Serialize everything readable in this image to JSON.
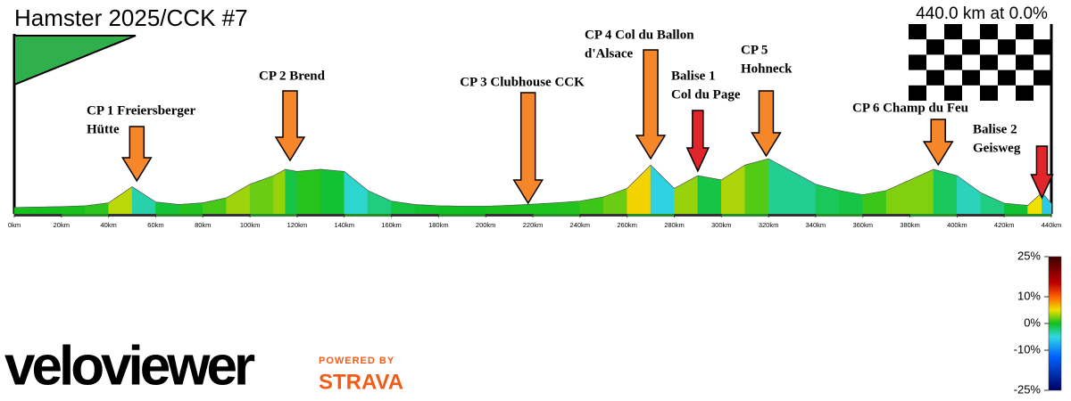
{
  "chart_data": {
    "type": "area",
    "title": "Hamster 2025/CCK #7",
    "summary": "440.0 km at 0.0%",
    "x": [
      0,
      10,
      20,
      30,
      40,
      50,
      60,
      70,
      80,
      90,
      100,
      110,
      115,
      120,
      130,
      140,
      150,
      160,
      170,
      180,
      190,
      200,
      210,
      220,
      230,
      240,
      250,
      260,
      270,
      280,
      290,
      300,
      310,
      320,
      330,
      340,
      350,
      360,
      370,
      380,
      390,
      400,
      410,
      420,
      430,
      436,
      440
    ],
    "values": [
      150,
      160,
      170,
      190,
      260,
      640,
      280,
      220,
      260,
      380,
      700,
      900,
      1050,
      1000,
      1050,
      1000,
      550,
      300,
      220,
      190,
      180,
      180,
      200,
      230,
      260,
      300,
      400,
      600,
      1150,
      600,
      900,
      800,
      1150,
      1300,
      1000,
      700,
      550,
      450,
      550,
      800,
      1050,
      900,
      500,
      250,
      200,
      500,
      250
    ],
    "xlim": [
      0,
      440
    ],
    "xticks": [
      {
        "value": 0,
        "label": "0km"
      },
      {
        "value": 20,
        "label": "20km"
      },
      {
        "value": 40,
        "label": "40km"
      },
      {
        "value": 60,
        "label": "60km"
      },
      {
        "value": 80,
        "label": "80km"
      },
      {
        "value": 100,
        "label": "100km"
      },
      {
        "value": 120,
        "label": "120km"
      },
      {
        "value": 140,
        "label": "140km"
      },
      {
        "value": 160,
        "label": "160km"
      },
      {
        "value": 180,
        "label": "180km"
      },
      {
        "value": 200,
        "label": "200km"
      },
      {
        "value": 220,
        "label": "220km"
      },
      {
        "value": 240,
        "label": "240km"
      },
      {
        "value": 260,
        "label": "260km"
      },
      {
        "value": 280,
        "label": "280km"
      },
      {
        "value": 300,
        "label": "300km"
      },
      {
        "value": 320,
        "label": "320km"
      },
      {
        "value": 340,
        "label": "340km"
      },
      {
        "value": 360,
        "label": "360km"
      },
      {
        "value": 380,
        "label": "380km"
      },
      {
        "value": 400,
        "label": "400km"
      },
      {
        "value": 420,
        "label": "420km"
      },
      {
        "value": 440,
        "label": "440km"
      }
    ],
    "checkpoints": [
      {
        "km": 52,
        "lines": [
          "CP 1 Freiersberger",
          "Hütte"
        ],
        "color": "#f6862a"
      },
      {
        "km": 117,
        "lines": [
          "CP 2 Brend"
        ],
        "color": "#f6862a"
      },
      {
        "km": 218,
        "lines": [
          "CP 3 Clubhouse CCK"
        ],
        "color": "#f6862a"
      },
      {
        "km": 270,
        "lines": [
          "CP 4 Col du Ballon",
          "d'Alsace"
        ],
        "color": "#f6862a"
      },
      {
        "km": 290,
        "lines": [
          "Balise 1",
          "Col du Page"
        ],
        "color": "#e0262b"
      },
      {
        "km": 319,
        "lines": [
          "CP 5",
          "Hohneck"
        ],
        "color": "#f6862a"
      },
      {
        "km": 392,
        "lines": [
          "CP 6 Champ du Feu"
        ],
        "color": "#f6862a"
      },
      {
        "km": 436,
        "lines": [
          "Balise 2",
          "Geisweg"
        ],
        "color": "#e0262b"
      }
    ],
    "colorbar": {
      "lim": [
        -25,
        25
      ],
      "ticks": [
        {
          "value": 25,
          "label": "25%"
        },
        {
          "value": 10,
          "label": "10%"
        },
        {
          "value": 0,
          "label": "0%"
        },
        {
          "value": -10,
          "label": "-10%"
        },
        {
          "value": -25,
          "label": "-25%"
        }
      ]
    }
  },
  "branding": {
    "logo": "veloviewer",
    "powered": "POWERED BY",
    "strava": "STRAVA"
  }
}
